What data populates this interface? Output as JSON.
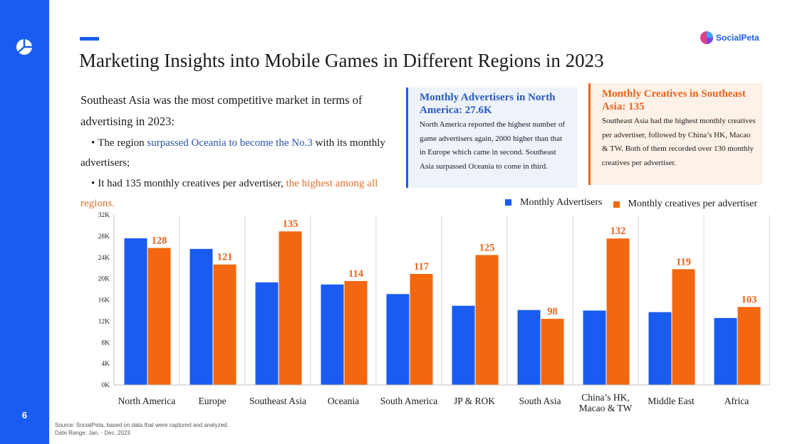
{
  "page": {
    "number": "6"
  },
  "header": {
    "title": "Marketing Insights into Mobile Games in Different Regions in 2023",
    "brand": "SocialPeta"
  },
  "intro": {
    "lead": "Southeast Asia was the most competitive market in terms of advertising in 2023:",
    "bullet1": {
      "pre": "The region ",
      "highlight": "surpassed Oceania to become the No.3",
      "post": " with its monthly advertisers;"
    },
    "bullet2": {
      "pre": "It had 135 monthly creatives per advertiser, ",
      "highlight": "the highest among all regions."
    }
  },
  "callouts": {
    "advertisers": {
      "title": "Monthly Advertisers in North America: 27.6K",
      "body": "North America reported the highest number of game advertisers again, 2000 higher than that in Europe which came in second. Southeast Asia surpassed Oceania to come in third."
    },
    "creatives": {
      "title": "Monthly Creatives in Southeast Asia: 135",
      "body": "Southeast Asia had the highest monthly creatives per advertiser, followed by China’s HK, Macao & TW. Both of them recorded over 130 monthly creatives per advertiser."
    }
  },
  "chart_data": {
    "type": "bar",
    "title": "",
    "xlabel": "",
    "ylabel": "",
    "categories": [
      "North America",
      "Europe",
      "Southeast Asia",
      "Oceania",
      "South America",
      "JP & ROK",
      "South Asia",
      "China’s HK, Macao & TW",
      "Middle East",
      "Africa"
    ],
    "series": [
      {
        "name": "Monthly Advertisers",
        "color": "#1a5cf0",
        "axis": "left",
        "values": [
          27600,
          25600,
          19300,
          18900,
          17100,
          14900,
          14100,
          14000,
          13700,
          12600
        ]
      },
      {
        "name": "Monthly creatives per advertiser",
        "color": "#f2670f",
        "axis": "right",
        "labels_shown": true,
        "values": [
          128,
          121,
          135,
          114,
          117,
          125,
          98,
          132,
          119,
          103
        ]
      }
    ],
    "y_ticks": [
      "0K",
      "4K",
      "8K",
      "12K",
      "16K",
      "20K",
      "24K",
      "28K",
      "32K"
    ],
    "ylim": [
      0,
      32000
    ],
    "y2lim": [
      70,
      142
    ],
    "legend_position": "top-right",
    "grid": false
  },
  "footer": {
    "source": "Source: SocialPeta, based on data that were captured and analyzed.",
    "date_range": "Date Range: Jan. - Dec. 2023"
  },
  "colors": {
    "blue": "#1a5cf0",
    "orange": "#f2670f",
    "highlight_blue": "#2a52a8",
    "highlight_orange": "#e0702a"
  }
}
